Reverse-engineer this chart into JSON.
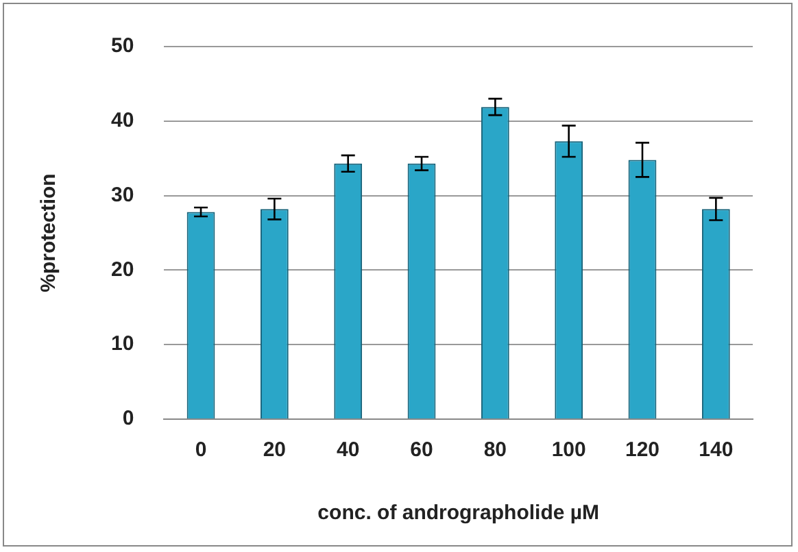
{
  "chart_data": {
    "type": "bar",
    "xlabel": "conc. of andrographolide µM",
    "ylabel": "%protection",
    "categories": [
      "0",
      "20",
      "40",
      "60",
      "80",
      "100",
      "120",
      "140"
    ],
    "values": [
      27.8,
      28.2,
      34.3,
      34.3,
      41.9,
      37.3,
      34.8,
      28.2
    ],
    "errors": [
      0.6,
      1.4,
      1.1,
      0.9,
      1.1,
      2.1,
      2.3,
      1.5
    ],
    "color": "#2aa6c8",
    "ylim": [
      0,
      50
    ],
    "yticks": [
      0,
      10,
      20,
      30,
      40,
      50
    ],
    "grid": "y"
  }
}
